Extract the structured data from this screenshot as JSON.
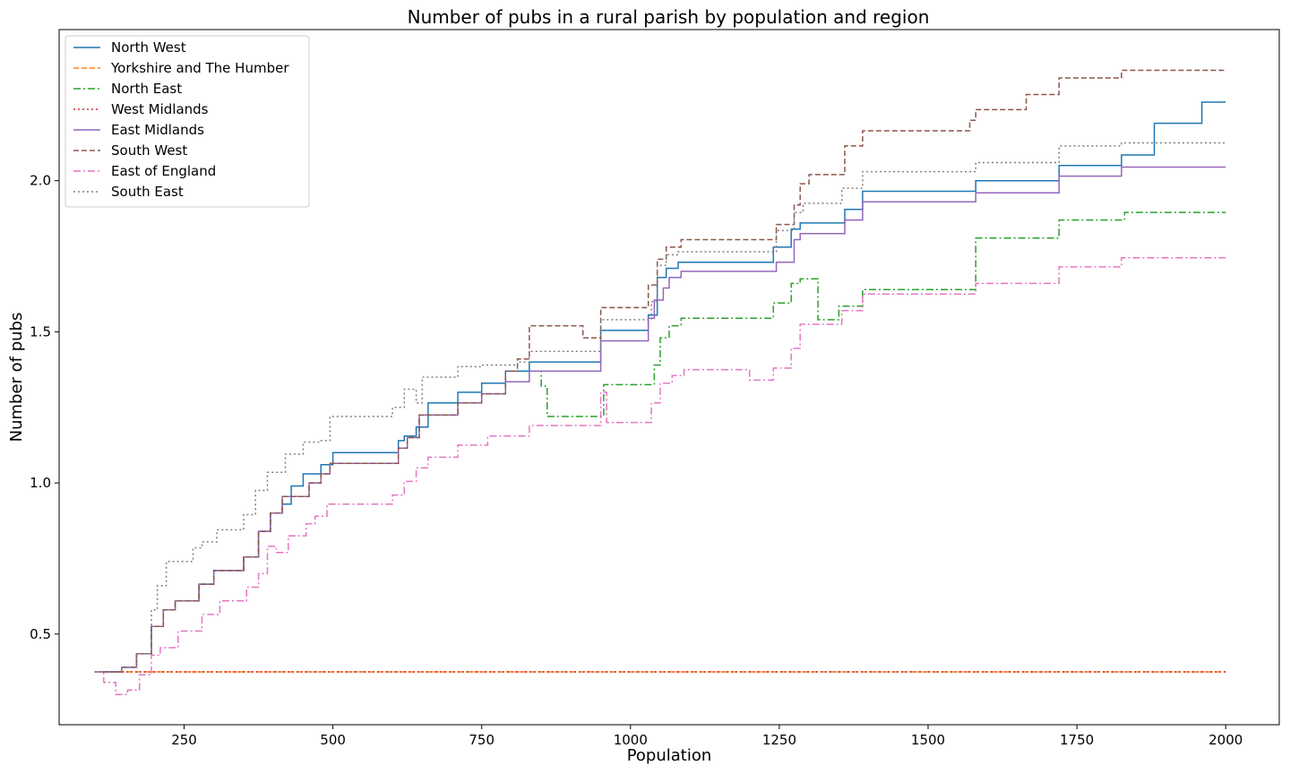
{
  "chart_data": {
    "type": "line",
    "title": "Number of pubs in a rural parish by population and region",
    "xlabel": "Population",
    "ylabel": "Number of pubs",
    "xlim": [
      40,
      2090
    ],
    "ylim": [
      0.2,
      2.5
    ],
    "xticks": [
      250,
      500,
      750,
      1000,
      1250,
      1500,
      1750,
      2000
    ],
    "yticks": [
      0.5,
      1.0,
      1.5,
      2.0
    ],
    "xtick_labels": [
      "250",
      "500",
      "750",
      "1000",
      "1250",
      "1500",
      "1750",
      "2000"
    ],
    "ytick_labels": [
      "0.5",
      "1.0",
      "1.5",
      "2.0"
    ],
    "grid": false,
    "legend_position": "top-left",
    "series": [
      {
        "name": "North West",
        "color": "#1f77b4",
        "dash": "solid",
        "points": [
          [
            100,
            0.375
          ],
          [
            125,
            0.375
          ],
          [
            145,
            0.39
          ],
          [
            170,
            0.435
          ],
          [
            195,
            0.525
          ],
          [
            215,
            0.58
          ],
          [
            235,
            0.61
          ],
          [
            275,
            0.665
          ],
          [
            300,
            0.71
          ],
          [
            350,
            0.755
          ],
          [
            375,
            0.84
          ],
          [
            395,
            0.9
          ],
          [
            415,
            0.93
          ],
          [
            430,
            0.99
          ],
          [
            450,
            1.03
          ],
          [
            480,
            1.06
          ],
          [
            500,
            1.1
          ],
          [
            610,
            1.14
          ],
          [
            620,
            1.155
          ],
          [
            640,
            1.185
          ],
          [
            660,
            1.265
          ],
          [
            710,
            1.3
          ],
          [
            750,
            1.33
          ],
          [
            790,
            1.37
          ],
          [
            830,
            1.4
          ],
          [
            950,
            1.505
          ],
          [
            1030,
            1.555
          ],
          [
            1045,
            1.68
          ],
          [
            1060,
            1.71
          ],
          [
            1080,
            1.73
          ],
          [
            1240,
            1.78
          ],
          [
            1270,
            1.84
          ],
          [
            1285,
            1.86
          ],
          [
            1360,
            1.905
          ],
          [
            1390,
            1.965
          ],
          [
            1580,
            2.0
          ],
          [
            1720,
            2.05
          ],
          [
            1825,
            2.085
          ],
          [
            1880,
            2.19
          ],
          [
            1960,
            2.26
          ],
          [
            2000,
            2.26
          ]
        ]
      },
      {
        "name": "Yorkshire and The Humber",
        "color": "#ff7f0e",
        "dash": "dashed",
        "points": [
          [
            100,
            0.375
          ],
          [
            2000,
            0.375
          ]
        ]
      },
      {
        "name": "North East",
        "color": "#2ca02c",
        "dash": "dashdot",
        "points": [
          [
            840,
            1.37
          ],
          [
            850,
            1.32
          ],
          [
            860,
            1.22
          ],
          [
            945,
            1.22
          ],
          [
            955,
            1.325
          ],
          [
            1030,
            1.325
          ],
          [
            1040,
            1.39
          ],
          [
            1050,
            1.48
          ],
          [
            1065,
            1.52
          ],
          [
            1085,
            1.545
          ],
          [
            1240,
            1.595
          ],
          [
            1270,
            1.66
          ],
          [
            1285,
            1.675
          ],
          [
            1315,
            1.54
          ],
          [
            1350,
            1.585
          ],
          [
            1390,
            1.64
          ],
          [
            1580,
            1.81
          ],
          [
            1720,
            1.87
          ],
          [
            1830,
            1.895
          ],
          [
            2000,
            1.895
          ]
        ]
      },
      {
        "name": "West Midlands",
        "color": "#d62728",
        "dash": "dotted",
        "points": [
          [
            100,
            0.375
          ],
          [
            2000,
            0.375
          ]
        ]
      },
      {
        "name": "East Midlands",
        "color": "#9467bd",
        "dash": "solid",
        "points": [
          [
            100,
            0.375
          ],
          [
            125,
            0.375
          ],
          [
            145,
            0.39
          ],
          [
            170,
            0.435
          ],
          [
            195,
            0.525
          ],
          [
            215,
            0.58
          ],
          [
            235,
            0.61
          ],
          [
            275,
            0.665
          ],
          [
            300,
            0.71
          ],
          [
            350,
            0.755
          ],
          [
            375,
            0.84
          ],
          [
            395,
            0.9
          ],
          [
            415,
            0.955
          ],
          [
            460,
            1.0
          ],
          [
            480,
            1.03
          ],
          [
            495,
            1.065
          ],
          [
            610,
            1.115
          ],
          [
            625,
            1.15
          ],
          [
            645,
            1.225
          ],
          [
            710,
            1.265
          ],
          [
            750,
            1.295
          ],
          [
            790,
            1.335
          ],
          [
            830,
            1.37
          ],
          [
            950,
            1.47
          ],
          [
            1030,
            1.545
          ],
          [
            1040,
            1.605
          ],
          [
            1055,
            1.645
          ],
          [
            1065,
            1.68
          ],
          [
            1085,
            1.7
          ],
          [
            1245,
            1.73
          ],
          [
            1275,
            1.805
          ],
          [
            1285,
            1.825
          ],
          [
            1360,
            1.87
          ],
          [
            1390,
            1.93
          ],
          [
            1580,
            1.96
          ],
          [
            1720,
            2.015
          ],
          [
            1825,
            2.045
          ],
          [
            2000,
            2.045
          ]
        ]
      },
      {
        "name": "South West",
        "color": "#8c564b",
        "dash": "dashed",
        "points": [
          [
            100,
            0.375
          ],
          [
            125,
            0.375
          ],
          [
            145,
            0.39
          ],
          [
            170,
            0.435
          ],
          [
            195,
            0.525
          ],
          [
            215,
            0.58
          ],
          [
            235,
            0.61
          ],
          [
            275,
            0.665
          ],
          [
            300,
            0.71
          ],
          [
            350,
            0.755
          ],
          [
            375,
            0.84
          ],
          [
            395,
            0.9
          ],
          [
            415,
            0.955
          ],
          [
            460,
            1.0
          ],
          [
            480,
            1.03
          ],
          [
            495,
            1.065
          ],
          [
            610,
            1.115
          ],
          [
            625,
            1.15
          ],
          [
            645,
            1.225
          ],
          [
            710,
            1.265
          ],
          [
            750,
            1.295
          ],
          [
            790,
            1.37
          ],
          [
            810,
            1.41
          ],
          [
            830,
            1.52
          ],
          [
            920,
            1.48
          ],
          [
            950,
            1.58
          ],
          [
            1030,
            1.655
          ],
          [
            1045,
            1.74
          ],
          [
            1060,
            1.78
          ],
          [
            1085,
            1.805
          ],
          [
            1245,
            1.855
          ],
          [
            1275,
            1.92
          ],
          [
            1285,
            1.99
          ],
          [
            1300,
            2.02
          ],
          [
            1360,
            2.115
          ],
          [
            1390,
            2.165
          ],
          [
            1570,
            2.2
          ],
          [
            1580,
            2.235
          ],
          [
            1665,
            2.285
          ],
          [
            1720,
            2.34
          ],
          [
            1825,
            2.365
          ],
          [
            2000,
            2.365
          ]
        ]
      },
      {
        "name": "East of England",
        "color": "#e377c2",
        "dash": "dashdot",
        "points": [
          [
            100,
            0.375
          ],
          [
            115,
            0.34
          ],
          [
            135,
            0.3
          ],
          [
            155,
            0.315
          ],
          [
            175,
            0.365
          ],
          [
            195,
            0.43
          ],
          [
            210,
            0.455
          ],
          [
            240,
            0.51
          ],
          [
            280,
            0.565
          ],
          [
            310,
            0.61
          ],
          [
            355,
            0.655
          ],
          [
            375,
            0.7
          ],
          [
            390,
            0.79
          ],
          [
            405,
            0.77
          ],
          [
            425,
            0.825
          ],
          [
            455,
            0.865
          ],
          [
            470,
            0.89
          ],
          [
            490,
            0.93
          ],
          [
            600,
            0.96
          ],
          [
            620,
            1.005
          ],
          [
            640,
            1.05
          ],
          [
            660,
            1.085
          ],
          [
            710,
            1.125
          ],
          [
            760,
            1.155
          ],
          [
            830,
            1.19
          ],
          [
            950,
            1.3
          ],
          [
            960,
            1.2
          ],
          [
            1035,
            1.265
          ],
          [
            1050,
            1.33
          ],
          [
            1070,
            1.355
          ],
          [
            1090,
            1.375
          ],
          [
            1200,
            1.34
          ],
          [
            1240,
            1.38
          ],
          [
            1270,
            1.445
          ],
          [
            1285,
            1.525
          ],
          [
            1355,
            1.57
          ],
          [
            1390,
            1.625
          ],
          [
            1580,
            1.66
          ],
          [
            1720,
            1.715
          ],
          [
            1825,
            1.745
          ],
          [
            2000,
            1.745
          ]
        ]
      },
      {
        "name": "South East",
        "color": "#7f7f7f",
        "dash": "dotted",
        "points": [
          [
            100,
            0.375
          ],
          [
            125,
            0.375
          ],
          [
            145,
            0.39
          ],
          [
            170,
            0.435
          ],
          [
            195,
            0.58
          ],
          [
            205,
            0.66
          ],
          [
            220,
            0.74
          ],
          [
            265,
            0.785
          ],
          [
            280,
            0.805
          ],
          [
            305,
            0.845
          ],
          [
            350,
            0.895
          ],
          [
            370,
            0.975
          ],
          [
            390,
            1.035
          ],
          [
            420,
            1.095
          ],
          [
            450,
            1.135
          ],
          [
            480,
            1.14
          ],
          [
            495,
            1.22
          ],
          [
            600,
            1.25
          ],
          [
            620,
            1.31
          ],
          [
            640,
            1.265
          ],
          [
            650,
            1.35
          ],
          [
            710,
            1.385
          ],
          [
            750,
            1.39
          ],
          [
            810,
            1.4
          ],
          [
            830,
            1.435
          ],
          [
            950,
            1.54
          ],
          [
            1035,
            1.6
          ],
          [
            1045,
            1.72
          ],
          [
            1060,
            1.755
          ],
          [
            1080,
            1.765
          ],
          [
            1245,
            1.835
          ],
          [
            1275,
            1.895
          ],
          [
            1290,
            1.925
          ],
          [
            1355,
            1.975
          ],
          [
            1390,
            2.03
          ],
          [
            1580,
            2.06
          ],
          [
            1720,
            2.115
          ],
          [
            1825,
            2.125
          ],
          [
            2000,
            2.125
          ]
        ]
      }
    ]
  }
}
